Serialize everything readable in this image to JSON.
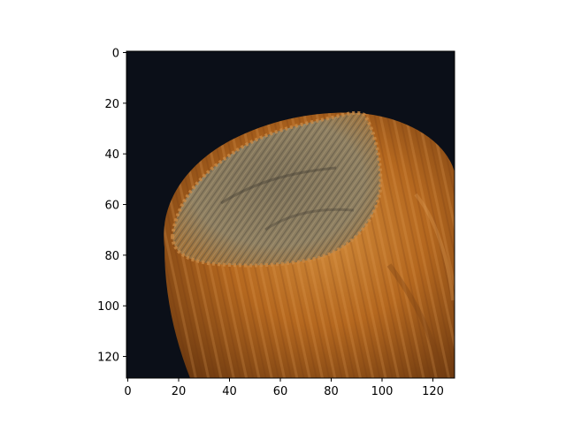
{
  "figure": {
    "image_subject": "hazelnut-photo",
    "background_color": "#0a0e16",
    "nut_shell_color": "#b8691f",
    "nut_cap_color": "#8a7a5e"
  },
  "axes": {
    "x_ticks": [
      "0",
      "20",
      "40",
      "60",
      "80",
      "100",
      "120"
    ],
    "y_ticks": [
      "0",
      "20",
      "40",
      "60",
      "80",
      "100",
      "120"
    ],
    "x_range": [
      0,
      128
    ],
    "y_range": [
      0,
      128
    ]
  }
}
